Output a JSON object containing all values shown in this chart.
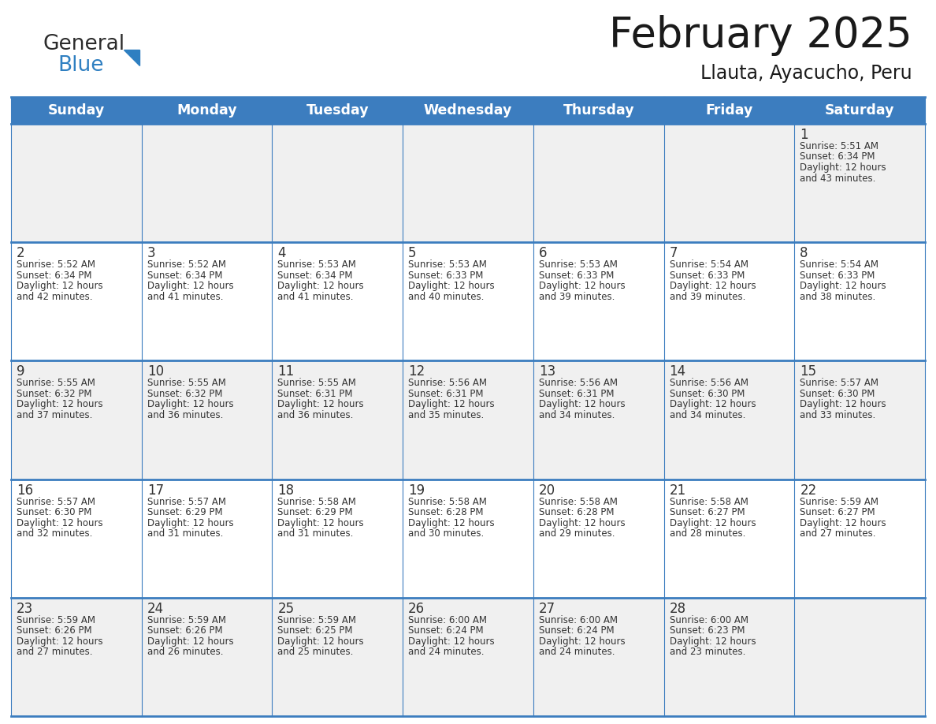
{
  "title": "February 2025",
  "subtitle": "Llauta, Ayacucho, Peru",
  "header_color": "#3c7dbf",
  "header_text_color": "#ffffff",
  "border_color": "#3c7dbf",
  "alt_row_color": "#f0f0f0",
  "white_row_color": "#ffffff",
  "text_color": "#333333",
  "day_names": [
    "Sunday",
    "Monday",
    "Tuesday",
    "Wednesday",
    "Thursday",
    "Friday",
    "Saturday"
  ],
  "logo_general_color": "#2b2b2b",
  "logo_blue_color": "#2e7fc1",
  "days": [
    {
      "day": 1,
      "col": 6,
      "row": 0,
      "sunrise": "5:51 AM",
      "sunset": "6:34 PM",
      "daylight_hours": 12,
      "daylight_minutes": 43
    },
    {
      "day": 2,
      "col": 0,
      "row": 1,
      "sunrise": "5:52 AM",
      "sunset": "6:34 PM",
      "daylight_hours": 12,
      "daylight_minutes": 42
    },
    {
      "day": 3,
      "col": 1,
      "row": 1,
      "sunrise": "5:52 AM",
      "sunset": "6:34 PM",
      "daylight_hours": 12,
      "daylight_minutes": 41
    },
    {
      "day": 4,
      "col": 2,
      "row": 1,
      "sunrise": "5:53 AM",
      "sunset": "6:34 PM",
      "daylight_hours": 12,
      "daylight_minutes": 41
    },
    {
      "day": 5,
      "col": 3,
      "row": 1,
      "sunrise": "5:53 AM",
      "sunset": "6:33 PM",
      "daylight_hours": 12,
      "daylight_minutes": 40
    },
    {
      "day": 6,
      "col": 4,
      "row": 1,
      "sunrise": "5:53 AM",
      "sunset": "6:33 PM",
      "daylight_hours": 12,
      "daylight_minutes": 39
    },
    {
      "day": 7,
      "col": 5,
      "row": 1,
      "sunrise": "5:54 AM",
      "sunset": "6:33 PM",
      "daylight_hours": 12,
      "daylight_minutes": 39
    },
    {
      "day": 8,
      "col": 6,
      "row": 1,
      "sunrise": "5:54 AM",
      "sunset": "6:33 PM",
      "daylight_hours": 12,
      "daylight_minutes": 38
    },
    {
      "day": 9,
      "col": 0,
      "row": 2,
      "sunrise": "5:55 AM",
      "sunset": "6:32 PM",
      "daylight_hours": 12,
      "daylight_minutes": 37
    },
    {
      "day": 10,
      "col": 1,
      "row": 2,
      "sunrise": "5:55 AM",
      "sunset": "6:32 PM",
      "daylight_hours": 12,
      "daylight_minutes": 36
    },
    {
      "day": 11,
      "col": 2,
      "row": 2,
      "sunrise": "5:55 AM",
      "sunset": "6:31 PM",
      "daylight_hours": 12,
      "daylight_minutes": 36
    },
    {
      "day": 12,
      "col": 3,
      "row": 2,
      "sunrise": "5:56 AM",
      "sunset": "6:31 PM",
      "daylight_hours": 12,
      "daylight_minutes": 35
    },
    {
      "day": 13,
      "col": 4,
      "row": 2,
      "sunrise": "5:56 AM",
      "sunset": "6:31 PM",
      "daylight_hours": 12,
      "daylight_minutes": 34
    },
    {
      "day": 14,
      "col": 5,
      "row": 2,
      "sunrise": "5:56 AM",
      "sunset": "6:30 PM",
      "daylight_hours": 12,
      "daylight_minutes": 34
    },
    {
      "day": 15,
      "col": 6,
      "row": 2,
      "sunrise": "5:57 AM",
      "sunset": "6:30 PM",
      "daylight_hours": 12,
      "daylight_minutes": 33
    },
    {
      "day": 16,
      "col": 0,
      "row": 3,
      "sunrise": "5:57 AM",
      "sunset": "6:30 PM",
      "daylight_hours": 12,
      "daylight_minutes": 32
    },
    {
      "day": 17,
      "col": 1,
      "row": 3,
      "sunrise": "5:57 AM",
      "sunset": "6:29 PM",
      "daylight_hours": 12,
      "daylight_minutes": 31
    },
    {
      "day": 18,
      "col": 2,
      "row": 3,
      "sunrise": "5:58 AM",
      "sunset": "6:29 PM",
      "daylight_hours": 12,
      "daylight_minutes": 31
    },
    {
      "day": 19,
      "col": 3,
      "row": 3,
      "sunrise": "5:58 AM",
      "sunset": "6:28 PM",
      "daylight_hours": 12,
      "daylight_minutes": 30
    },
    {
      "day": 20,
      "col": 4,
      "row": 3,
      "sunrise": "5:58 AM",
      "sunset": "6:28 PM",
      "daylight_hours": 12,
      "daylight_minutes": 29
    },
    {
      "day": 21,
      "col": 5,
      "row": 3,
      "sunrise": "5:58 AM",
      "sunset": "6:27 PM",
      "daylight_hours": 12,
      "daylight_minutes": 28
    },
    {
      "day": 22,
      "col": 6,
      "row": 3,
      "sunrise": "5:59 AM",
      "sunset": "6:27 PM",
      "daylight_hours": 12,
      "daylight_minutes": 27
    },
    {
      "day": 23,
      "col": 0,
      "row": 4,
      "sunrise": "5:59 AM",
      "sunset": "6:26 PM",
      "daylight_hours": 12,
      "daylight_minutes": 27
    },
    {
      "day": 24,
      "col": 1,
      "row": 4,
      "sunrise": "5:59 AM",
      "sunset": "6:26 PM",
      "daylight_hours": 12,
      "daylight_minutes": 26
    },
    {
      "day": 25,
      "col": 2,
      "row": 4,
      "sunrise": "5:59 AM",
      "sunset": "6:25 PM",
      "daylight_hours": 12,
      "daylight_minutes": 25
    },
    {
      "day": 26,
      "col": 3,
      "row": 4,
      "sunrise": "6:00 AM",
      "sunset": "6:24 PM",
      "daylight_hours": 12,
      "daylight_minutes": 24
    },
    {
      "day": 27,
      "col": 4,
      "row": 4,
      "sunrise": "6:00 AM",
      "sunset": "6:24 PM",
      "daylight_hours": 12,
      "daylight_minutes": 24
    },
    {
      "day": 28,
      "col": 5,
      "row": 4,
      "sunrise": "6:00 AM",
      "sunset": "6:23 PM",
      "daylight_hours": 12,
      "daylight_minutes": 23
    }
  ]
}
